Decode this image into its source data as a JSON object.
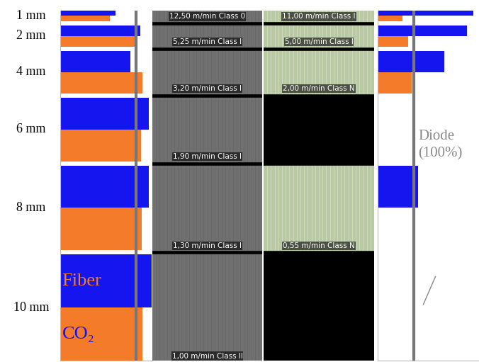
{
  "chart_data": {
    "type": "bar",
    "orientation": "horizontal",
    "tick_labels": false,
    "categories": [
      "1 mm",
      "2 mm",
      "4 mm",
      "6 mm",
      "8 mm",
      "10 mm"
    ],
    "panels": [
      {
        "xlim": [
          0,
          122
        ],
        "reference": 100,
        "legend": "lower left",
        "series": [
          {
            "name": "CO₂",
            "color": "#1515f0",
            "values": [
              73,
              106,
              93,
              117,
              117,
              121
            ]
          },
          {
            "name": "Fiber",
            "color": "#f47b2a",
            "values": [
              66,
              99,
              109,
              107,
              108,
              109
            ]
          }
        ]
      },
      {
        "xlim": [
          0,
          280
        ],
        "reference": 100,
        "reference_label": "Diode\n(100%)",
        "series": [
          {
            "name": "CO₂",
            "color": "#1515f0",
            "values": [
              265,
              247,
              184,
              null,
              112,
              null
            ]
          },
          {
            "name": "Fiber",
            "color": "#f47b2a",
            "values": [
              69,
              84,
              94,
              null,
              null,
              null
            ]
          }
        ]
      }
    ],
    "images": [
      {
        "labels": [
          "12,50 m/min Class 0",
          "5,25 m/min Class I",
          "3,20 m/min Class I",
          "1,90 m/min Class I",
          "1,30 m/min Class I",
          "1,00 m/min Class II"
        ]
      },
      {
        "labels": [
          "11,00 m/min Class I",
          "5,00 m/min Class I",
          "2,00 m/min Class N",
          null,
          "0,55 m/min Class N",
          null
        ]
      }
    ]
  }
}
